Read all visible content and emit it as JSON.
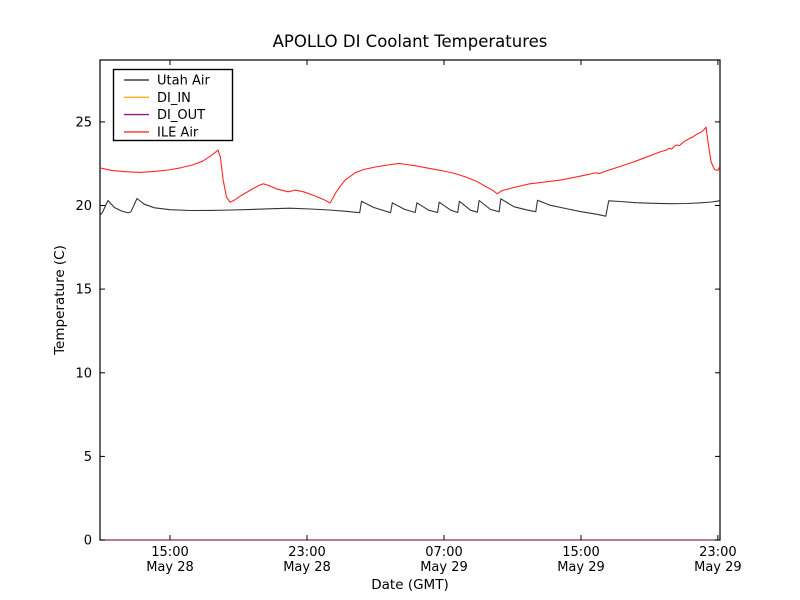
{
  "chart_data": {
    "type": "line",
    "title": "APOLLO DI Coolant Temperatures",
    "xlabel": "Date (GMT)",
    "ylabel": "Temperature (C)",
    "grid": false,
    "legend_position": "upper left",
    "x_unit": "hours since May 28 00:00 GMT",
    "xlim": [
      10.91,
      47.12
    ],
    "ylim": [
      0,
      28.7
    ],
    "yticks": [
      0,
      5,
      10,
      15,
      20,
      25
    ],
    "xticks": [
      {
        "value": 15,
        "time": "15:00",
        "date": "May 28"
      },
      {
        "value": 23,
        "time": "23:00",
        "date": "May 28"
      },
      {
        "value": 31,
        "time": "07:00",
        "date": "May 29"
      },
      {
        "value": 39,
        "time": "15:00",
        "date": "May 29"
      },
      {
        "value": 47,
        "time": "23:00",
        "date": "May 29"
      }
    ],
    "series": [
      {
        "name": "Utah Air",
        "color": "#2a2a2a",
        "points": [
          [
            10.91,
            19.42
          ],
          [
            11.05,
            19.58
          ],
          [
            11.38,
            20.3
          ],
          [
            11.75,
            19.88
          ],
          [
            12.15,
            19.68
          ],
          [
            12.55,
            19.56
          ],
          [
            12.72,
            19.63
          ],
          [
            13.07,
            20.42
          ],
          [
            13.5,
            20.08
          ],
          [
            14.1,
            19.86
          ],
          [
            15.0,
            19.75
          ],
          [
            16.2,
            19.7
          ],
          [
            17.4,
            19.71
          ],
          [
            18.6,
            19.73
          ],
          [
            19.8,
            19.77
          ],
          [
            21.0,
            19.81
          ],
          [
            22.0,
            19.84
          ],
          [
            23.2,
            19.79
          ],
          [
            24.3,
            19.73
          ],
          [
            25.2,
            19.66
          ],
          [
            26.08,
            19.57
          ],
          [
            26.18,
            20.26
          ],
          [
            26.9,
            19.88
          ],
          [
            27.88,
            19.57
          ],
          [
            27.98,
            20.16
          ],
          [
            28.7,
            19.77
          ],
          [
            29.32,
            19.58
          ],
          [
            29.42,
            20.16
          ],
          [
            30.1,
            19.72
          ],
          [
            30.62,
            19.58
          ],
          [
            30.72,
            20.2
          ],
          [
            31.4,
            19.72
          ],
          [
            31.8,
            19.58
          ],
          [
            31.9,
            20.25
          ],
          [
            32.55,
            19.72
          ],
          [
            32.95,
            19.6
          ],
          [
            33.05,
            20.3
          ],
          [
            33.72,
            19.76
          ],
          [
            34.22,
            19.63
          ],
          [
            34.32,
            20.4
          ],
          [
            35.1,
            19.92
          ],
          [
            35.9,
            19.72
          ],
          [
            36.36,
            19.63
          ],
          [
            36.46,
            20.32
          ],
          [
            37.2,
            20.02
          ],
          [
            38.1,
            19.82
          ],
          [
            39.0,
            19.63
          ],
          [
            39.9,
            19.48
          ],
          [
            40.45,
            19.36
          ],
          [
            40.62,
            20.28
          ],
          [
            41.3,
            20.24
          ],
          [
            42.2,
            20.17
          ],
          [
            43.2,
            20.13
          ],
          [
            44.2,
            20.11
          ],
          [
            45.2,
            20.12
          ],
          [
            46.0,
            20.16
          ],
          [
            46.6,
            20.21
          ],
          [
            47.09,
            20.28
          ]
        ]
      },
      {
        "name": "DI_IN",
        "color": "#ffa500",
        "points": [
          [
            10.91,
            0
          ],
          [
            47.12,
            0
          ]
        ]
      },
      {
        "name": "DI_OUT",
        "color": "#800080",
        "points": [
          [
            10.91,
            0
          ],
          [
            47.12,
            0
          ]
        ]
      },
      {
        "name": "ILE Air",
        "color": "#ff1a1a",
        "points": [
          [
            10.91,
            22.25
          ],
          [
            11.6,
            22.1
          ],
          [
            12.4,
            22.02
          ],
          [
            13.25,
            21.98
          ],
          [
            14.1,
            22.04
          ],
          [
            14.9,
            22.12
          ],
          [
            15.6,
            22.25
          ],
          [
            16.3,
            22.42
          ],
          [
            16.9,
            22.65
          ],
          [
            17.35,
            22.95
          ],
          [
            17.65,
            23.18
          ],
          [
            17.8,
            23.32
          ],
          [
            17.95,
            22.85
          ],
          [
            18.1,
            21.55
          ],
          [
            18.3,
            20.5
          ],
          [
            18.5,
            20.2
          ],
          [
            18.75,
            20.32
          ],
          [
            19.2,
            20.62
          ],
          [
            19.8,
            20.98
          ],
          [
            20.2,
            21.2
          ],
          [
            20.45,
            21.3
          ],
          [
            20.75,
            21.2
          ],
          [
            21.2,
            21.0
          ],
          [
            21.9,
            20.82
          ],
          [
            22.3,
            20.92
          ],
          [
            22.8,
            20.82
          ],
          [
            23.4,
            20.6
          ],
          [
            24.0,
            20.35
          ],
          [
            24.35,
            20.15
          ],
          [
            24.7,
            20.8
          ],
          [
            25.2,
            21.5
          ],
          [
            25.8,
            21.95
          ],
          [
            26.3,
            22.15
          ],
          [
            27.0,
            22.3
          ],
          [
            27.7,
            22.42
          ],
          [
            28.4,
            22.52
          ],
          [
            28.8,
            22.45
          ],
          [
            29.3,
            22.38
          ],
          [
            30.0,
            22.25
          ],
          [
            30.8,
            22.1
          ],
          [
            31.6,
            21.92
          ],
          [
            32.3,
            21.7
          ],
          [
            32.9,
            21.45
          ],
          [
            33.5,
            21.1
          ],
          [
            33.9,
            20.88
          ],
          [
            34.1,
            20.7
          ],
          [
            34.4,
            20.9
          ],
          [
            35.0,
            21.05
          ],
          [
            36.0,
            21.3
          ],
          [
            37.0,
            21.42
          ],
          [
            37.8,
            21.52
          ],
          [
            38.6,
            21.68
          ],
          [
            39.4,
            21.85
          ],
          [
            39.8,
            21.95
          ],
          [
            40.1,
            21.92
          ],
          [
            40.5,
            22.08
          ],
          [
            41.2,
            22.3
          ],
          [
            42.0,
            22.58
          ],
          [
            42.8,
            22.88
          ],
          [
            43.6,
            23.2
          ],
          [
            44.0,
            23.32
          ],
          [
            44.15,
            23.42
          ],
          [
            44.3,
            23.38
          ],
          [
            44.45,
            23.55
          ],
          [
            44.6,
            23.62
          ],
          [
            44.75,
            23.58
          ],
          [
            44.9,
            23.72
          ],
          [
            45.05,
            23.85
          ],
          [
            45.2,
            23.92
          ],
          [
            45.35,
            24.02
          ],
          [
            45.5,
            24.08
          ],
          [
            45.65,
            24.18
          ],
          [
            45.8,
            24.28
          ],
          [
            45.95,
            24.35
          ],
          [
            46.1,
            24.45
          ],
          [
            46.2,
            24.55
          ],
          [
            46.3,
            24.68
          ],
          [
            46.45,
            23.6
          ],
          [
            46.6,
            22.6
          ],
          [
            46.8,
            22.15
          ],
          [
            47.0,
            22.1
          ],
          [
            47.09,
            22.3
          ]
        ]
      }
    ]
  }
}
